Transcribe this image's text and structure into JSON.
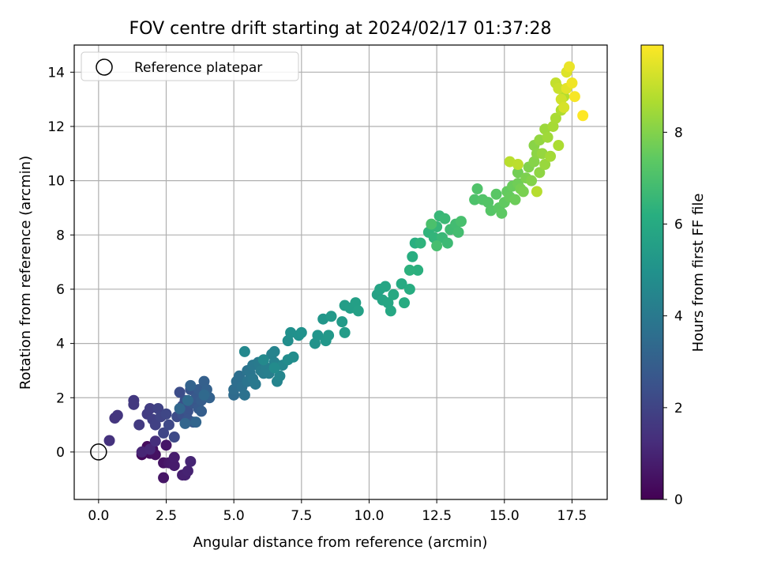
{
  "chart_data": {
    "type": "scatter",
    "title": "FOV centre drift starting at 2024/02/17 01:37:28",
    "xlabel": "Angular distance from reference (arcmin)",
    "ylabel": "Rotation from reference (arcmin)",
    "xlim": [
      -0.9,
      18.8
    ],
    "ylim": [
      -1.75,
      15.0
    ],
    "xticks": [
      "0.0",
      "2.5",
      "5.0",
      "7.5",
      "10.0",
      "12.5",
      "15.0",
      "17.5"
    ],
    "yticks": [
      "0",
      "2",
      "4",
      "6",
      "8",
      "10",
      "12",
      "14"
    ],
    "grid": true,
    "legend": {
      "position": "upper-left",
      "entries": [
        "Reference platepar"
      ]
    },
    "reference_point": {
      "x": 0,
      "y": 0
    },
    "colorbar": {
      "label": "Hours from first FF file",
      "colormap": "viridis",
      "range": [
        0,
        9.9
      ],
      "ticks": [
        "0",
        "2",
        "4",
        "6",
        "8"
      ]
    },
    "series": [
      {
        "points": [
          [
            1.6,
            -0.1,
            0.2
          ],
          [
            1.7,
            0.0,
            0.25
          ],
          [
            1.8,
            0.2,
            0.3
          ],
          [
            1.9,
            -0.05,
            0.35
          ],
          [
            2.0,
            0.1,
            0.4
          ],
          [
            2.1,
            -0.1,
            0.45
          ],
          [
            2.4,
            -0.4,
            0.5
          ],
          [
            2.4,
            -0.95,
            0.55
          ],
          [
            2.5,
            0.25,
            0.6
          ],
          [
            2.6,
            -0.4,
            0.65
          ],
          [
            2.7,
            -0.4,
            0.7
          ],
          [
            2.8,
            -0.5,
            0.75
          ],
          [
            2.8,
            -0.2,
            0.8
          ],
          [
            3.1,
            -0.85,
            0.85
          ],
          [
            3.2,
            -0.85,
            0.9
          ],
          [
            3.3,
            -0.7,
            0.95
          ],
          [
            3.4,
            -0.35,
            1.0
          ],
          [
            1.6,
            0.0,
            1.05
          ],
          [
            1.9,
            0.1,
            1.1
          ],
          [
            2.1,
            0.4,
            1.3
          ],
          [
            0.4,
            0.42,
            1.4
          ],
          [
            0.6,
            1.25,
            1.5
          ],
          [
            0.7,
            1.35,
            1.55
          ],
          [
            1.3,
            1.9,
            1.6
          ],
          [
            1.3,
            1.75,
            1.65
          ],
          [
            1.5,
            1.0,
            1.7
          ],
          [
            1.8,
            1.4,
            1.75
          ],
          [
            1.9,
            1.6,
            1.8
          ],
          [
            2.0,
            1.2,
            1.85
          ],
          [
            2.1,
            1.0,
            1.9
          ],
          [
            2.2,
            1.6,
            1.95
          ],
          [
            2.3,
            1.3,
            2.0
          ],
          [
            2.4,
            0.7,
            2.05
          ],
          [
            2.5,
            1.4,
            2.1
          ],
          [
            2.6,
            1.0,
            2.15
          ],
          [
            2.8,
            0.55,
            2.2
          ],
          [
            2.9,
            1.3,
            2.25
          ],
          [
            3.0,
            2.2,
            2.3
          ],
          [
            3.1,
            1.7,
            2.35
          ],
          [
            3.1,
            1.4,
            2.4
          ],
          [
            3.2,
            1.9,
            2.45
          ],
          [
            3.3,
            1.5,
            2.5
          ],
          [
            3.3,
            1.2,
            2.55
          ],
          [
            3.4,
            2.3,
            2.6
          ],
          [
            3.5,
            1.8,
            2.65
          ],
          [
            3.5,
            1.1,
            2.7
          ],
          [
            3.6,
            2.0,
            2.75
          ],
          [
            3.7,
            1.6,
            2.8
          ],
          [
            3.7,
            2.3,
            2.85
          ],
          [
            3.8,
            1.9,
            2.9
          ],
          [
            3.8,
            1.5,
            2.95
          ],
          [
            3.9,
            2.6,
            3.0
          ],
          [
            4.0,
            2.3,
            3.05
          ],
          [
            4.1,
            2.0,
            3.1
          ],
          [
            3.4,
            2.45,
            3.15
          ],
          [
            3.6,
            1.1,
            3.2
          ],
          [
            3.2,
            1.05,
            3.25
          ],
          [
            3.0,
            1.6,
            3.3
          ],
          [
            3.9,
            2.1,
            3.35
          ],
          [
            3.3,
            1.9,
            3.4
          ],
          [
            5.0,
            2.1,
            3.45
          ],
          [
            5.0,
            2.3,
            3.5
          ],
          [
            5.1,
            2.6,
            3.55
          ],
          [
            5.2,
            2.8,
            3.6
          ],
          [
            5.3,
            2.4,
            3.65
          ],
          [
            5.4,
            2.1,
            3.7
          ],
          [
            5.5,
            3.0,
            3.75
          ],
          [
            5.5,
            2.6,
            3.8
          ],
          [
            5.6,
            2.9,
            3.85
          ],
          [
            5.7,
            2.7,
            3.9
          ],
          [
            5.7,
            3.2,
            3.95
          ],
          [
            5.8,
            2.5,
            4.0
          ],
          [
            5.9,
            3.3,
            4.05
          ],
          [
            6.0,
            3.0,
            4.1
          ],
          [
            6.1,
            2.9,
            4.15
          ],
          [
            6.2,
            3.1,
            4.2
          ],
          [
            6.3,
            2.9,
            4.25
          ],
          [
            6.4,
            3.6,
            4.3
          ],
          [
            6.5,
            3.3,
            4.35
          ],
          [
            6.5,
            3.7,
            4.4
          ],
          [
            6.6,
            2.6,
            4.45
          ],
          [
            6.7,
            2.8,
            4.5
          ],
          [
            6.8,
            3.2,
            4.55
          ],
          [
            5.4,
            3.7,
            4.6
          ],
          [
            6.1,
            3.4,
            4.65
          ],
          [
            6.5,
            3.1,
            4.7
          ],
          [
            7.0,
            3.4,
            4.75
          ],
          [
            7.2,
            3.5,
            4.8
          ],
          [
            7.0,
            4.1,
            4.85
          ],
          [
            7.1,
            4.4,
            4.9
          ],
          [
            7.4,
            4.3,
            4.95
          ],
          [
            7.5,
            4.4,
            5.0
          ],
          [
            8.0,
            4.0,
            5.05
          ],
          [
            8.1,
            4.3,
            5.1
          ],
          [
            8.3,
            4.9,
            5.15
          ],
          [
            8.4,
            4.1,
            5.2
          ],
          [
            8.5,
            4.3,
            5.25
          ],
          [
            8.6,
            5.0,
            5.3
          ],
          [
            9.0,
            4.8,
            5.35
          ],
          [
            9.1,
            4.4,
            5.4
          ],
          [
            9.1,
            5.4,
            5.45
          ],
          [
            9.3,
            5.3,
            5.5
          ],
          [
            9.5,
            5.5,
            5.55
          ],
          [
            9.6,
            5.2,
            5.6
          ],
          [
            10.3,
            5.8,
            5.65
          ],
          [
            10.4,
            6.0,
            5.7
          ],
          [
            10.5,
            5.6,
            5.75
          ],
          [
            10.6,
            6.1,
            5.8
          ],
          [
            10.7,
            5.5,
            5.85
          ],
          [
            10.8,
            5.2,
            5.9
          ],
          [
            10.9,
            5.8,
            5.95
          ],
          [
            11.2,
            6.2,
            6.0
          ],
          [
            11.3,
            5.5,
            6.05
          ],
          [
            11.5,
            6.0,
            6.1
          ],
          [
            11.6,
            7.2,
            6.15
          ],
          [
            11.7,
            7.7,
            6.2
          ],
          [
            11.8,
            6.7,
            6.25
          ],
          [
            11.5,
            6.7,
            6.3
          ],
          [
            11.9,
            7.7,
            6.35
          ],
          [
            12.2,
            8.1,
            6.4
          ],
          [
            12.4,
            7.9,
            6.45
          ],
          [
            12.5,
            8.3,
            6.5
          ],
          [
            12.6,
            8.7,
            6.55
          ],
          [
            12.7,
            7.9,
            6.6
          ],
          [
            12.8,
            8.6,
            6.65
          ],
          [
            12.9,
            7.7,
            6.7
          ],
          [
            13.0,
            8.2,
            6.75
          ],
          [
            13.2,
            8.4,
            6.8
          ],
          [
            13.3,
            8.1,
            6.85
          ],
          [
            12.5,
            7.6,
            6.9
          ],
          [
            13.4,
            8.5,
            6.95
          ],
          [
            12.3,
            8.4,
            7.0
          ],
          [
            13.9,
            9.3,
            7.05
          ],
          [
            14.0,
            9.7,
            7.1
          ],
          [
            14.2,
            9.3,
            7.15
          ],
          [
            14.4,
            9.2,
            7.2
          ],
          [
            14.5,
            8.9,
            7.25
          ],
          [
            14.7,
            9.5,
            7.3
          ],
          [
            14.8,
            9.0,
            7.35
          ],
          [
            14.9,
            8.8,
            7.4
          ],
          [
            15.0,
            9.2,
            7.45
          ],
          [
            15.1,
            9.6,
            7.5
          ],
          [
            15.2,
            9.4,
            7.55
          ],
          [
            15.3,
            9.8,
            7.6
          ],
          [
            15.4,
            9.3,
            7.65
          ],
          [
            15.5,
            9.9,
            7.7
          ],
          [
            15.5,
            10.3,
            7.75
          ],
          [
            15.6,
            9.7,
            7.8
          ],
          [
            15.7,
            9.6,
            7.85
          ],
          [
            15.8,
            10.1,
            7.9
          ],
          [
            15.9,
            10.5,
            7.95
          ],
          [
            16.0,
            10.0,
            8.0
          ],
          [
            16.1,
            10.7,
            8.05
          ],
          [
            16.1,
            11.3,
            8.1
          ],
          [
            16.2,
            11.0,
            8.15
          ],
          [
            16.3,
            10.3,
            8.2
          ],
          [
            16.3,
            11.5,
            8.25
          ],
          [
            16.4,
            11.0,
            8.3
          ],
          [
            16.5,
            10.6,
            8.35
          ],
          [
            16.5,
            11.9,
            8.4
          ],
          [
            16.6,
            11.6,
            8.45
          ],
          [
            16.7,
            10.9,
            8.5
          ],
          [
            16.8,
            12.0,
            8.55
          ],
          [
            16.9,
            12.3,
            8.6
          ],
          [
            17.0,
            11.3,
            8.65
          ],
          [
            17.1,
            12.6,
            8.7
          ],
          [
            17.2,
            13.1,
            8.75
          ],
          [
            16.2,
            9.6,
            8.8
          ],
          [
            15.2,
            10.7,
            8.85
          ],
          [
            15.5,
            10.6,
            8.9
          ],
          [
            16.9,
            13.6,
            9.0
          ],
          [
            17.0,
            13.4,
            9.1
          ],
          [
            17.1,
            13.0,
            9.2
          ],
          [
            17.2,
            12.7,
            9.3
          ],
          [
            17.3,
            14.0,
            9.4
          ],
          [
            17.3,
            13.4,
            9.5
          ],
          [
            17.4,
            14.2,
            9.6
          ],
          [
            17.5,
            13.6,
            9.7
          ],
          [
            17.6,
            13.1,
            9.8
          ],
          [
            17.9,
            12.4,
            9.9
          ]
        ]
      }
    ]
  }
}
